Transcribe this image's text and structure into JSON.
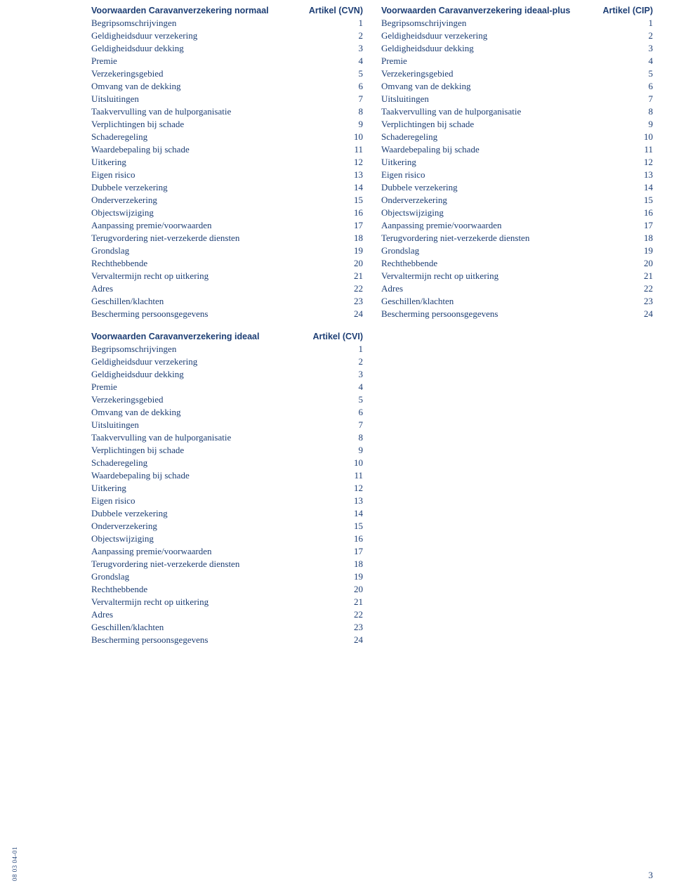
{
  "colors": {
    "text": "#1d3e74",
    "background": "#ffffff"
  },
  "fontsize": {
    "body": 13,
    "header": 12.5,
    "side": 9
  },
  "page_number": "3",
  "side_code": "08 03 04-01",
  "items": [
    "Begripsomschrijvingen",
    "Geldigheidsduur verzekering",
    "Geldigheidsduur dekking",
    "Premie",
    "Verzekeringsgebied",
    "Omvang van de dekking",
    "Uitsluitingen",
    "Taakvervulling van de hulporganisatie",
    "Verplichtingen bij schade",
    "Schaderegeling",
    "Waardebepaling bij schade",
    "Uitkering",
    "Eigen risico",
    "Dubbele verzekering",
    "Onderverzekering",
    "Objectswijziging",
    "Aanpassing premie/voorwaarden",
    "Terugvordering niet-verzekerde diensten",
    "Grondslag",
    "Rechthebbende",
    "Vervaltermijn recht op uitkering",
    "Adres",
    "Geschillen/klachten",
    "Bescherming persoonsgegevens"
  ],
  "numbers": [
    "1",
    "2",
    "3",
    "4",
    "5",
    "6",
    "7",
    "8",
    "9",
    "10",
    "11",
    "12",
    "13",
    "14",
    "15",
    "16",
    "17",
    "18",
    "19",
    "20",
    "21",
    "22",
    "23",
    "24"
  ],
  "blocks": [
    {
      "title": "Voorwaarden Caravanverzekering normaal",
      "code": "Artikel (CVN)"
    },
    {
      "title": "Voorwaarden Caravanverzekering ideaal-plus",
      "code": "Artikel (CIP)"
    },
    {
      "title": "Voorwaarden Caravanverzekering ideaal",
      "code": "Artikel (CVI)"
    }
  ]
}
